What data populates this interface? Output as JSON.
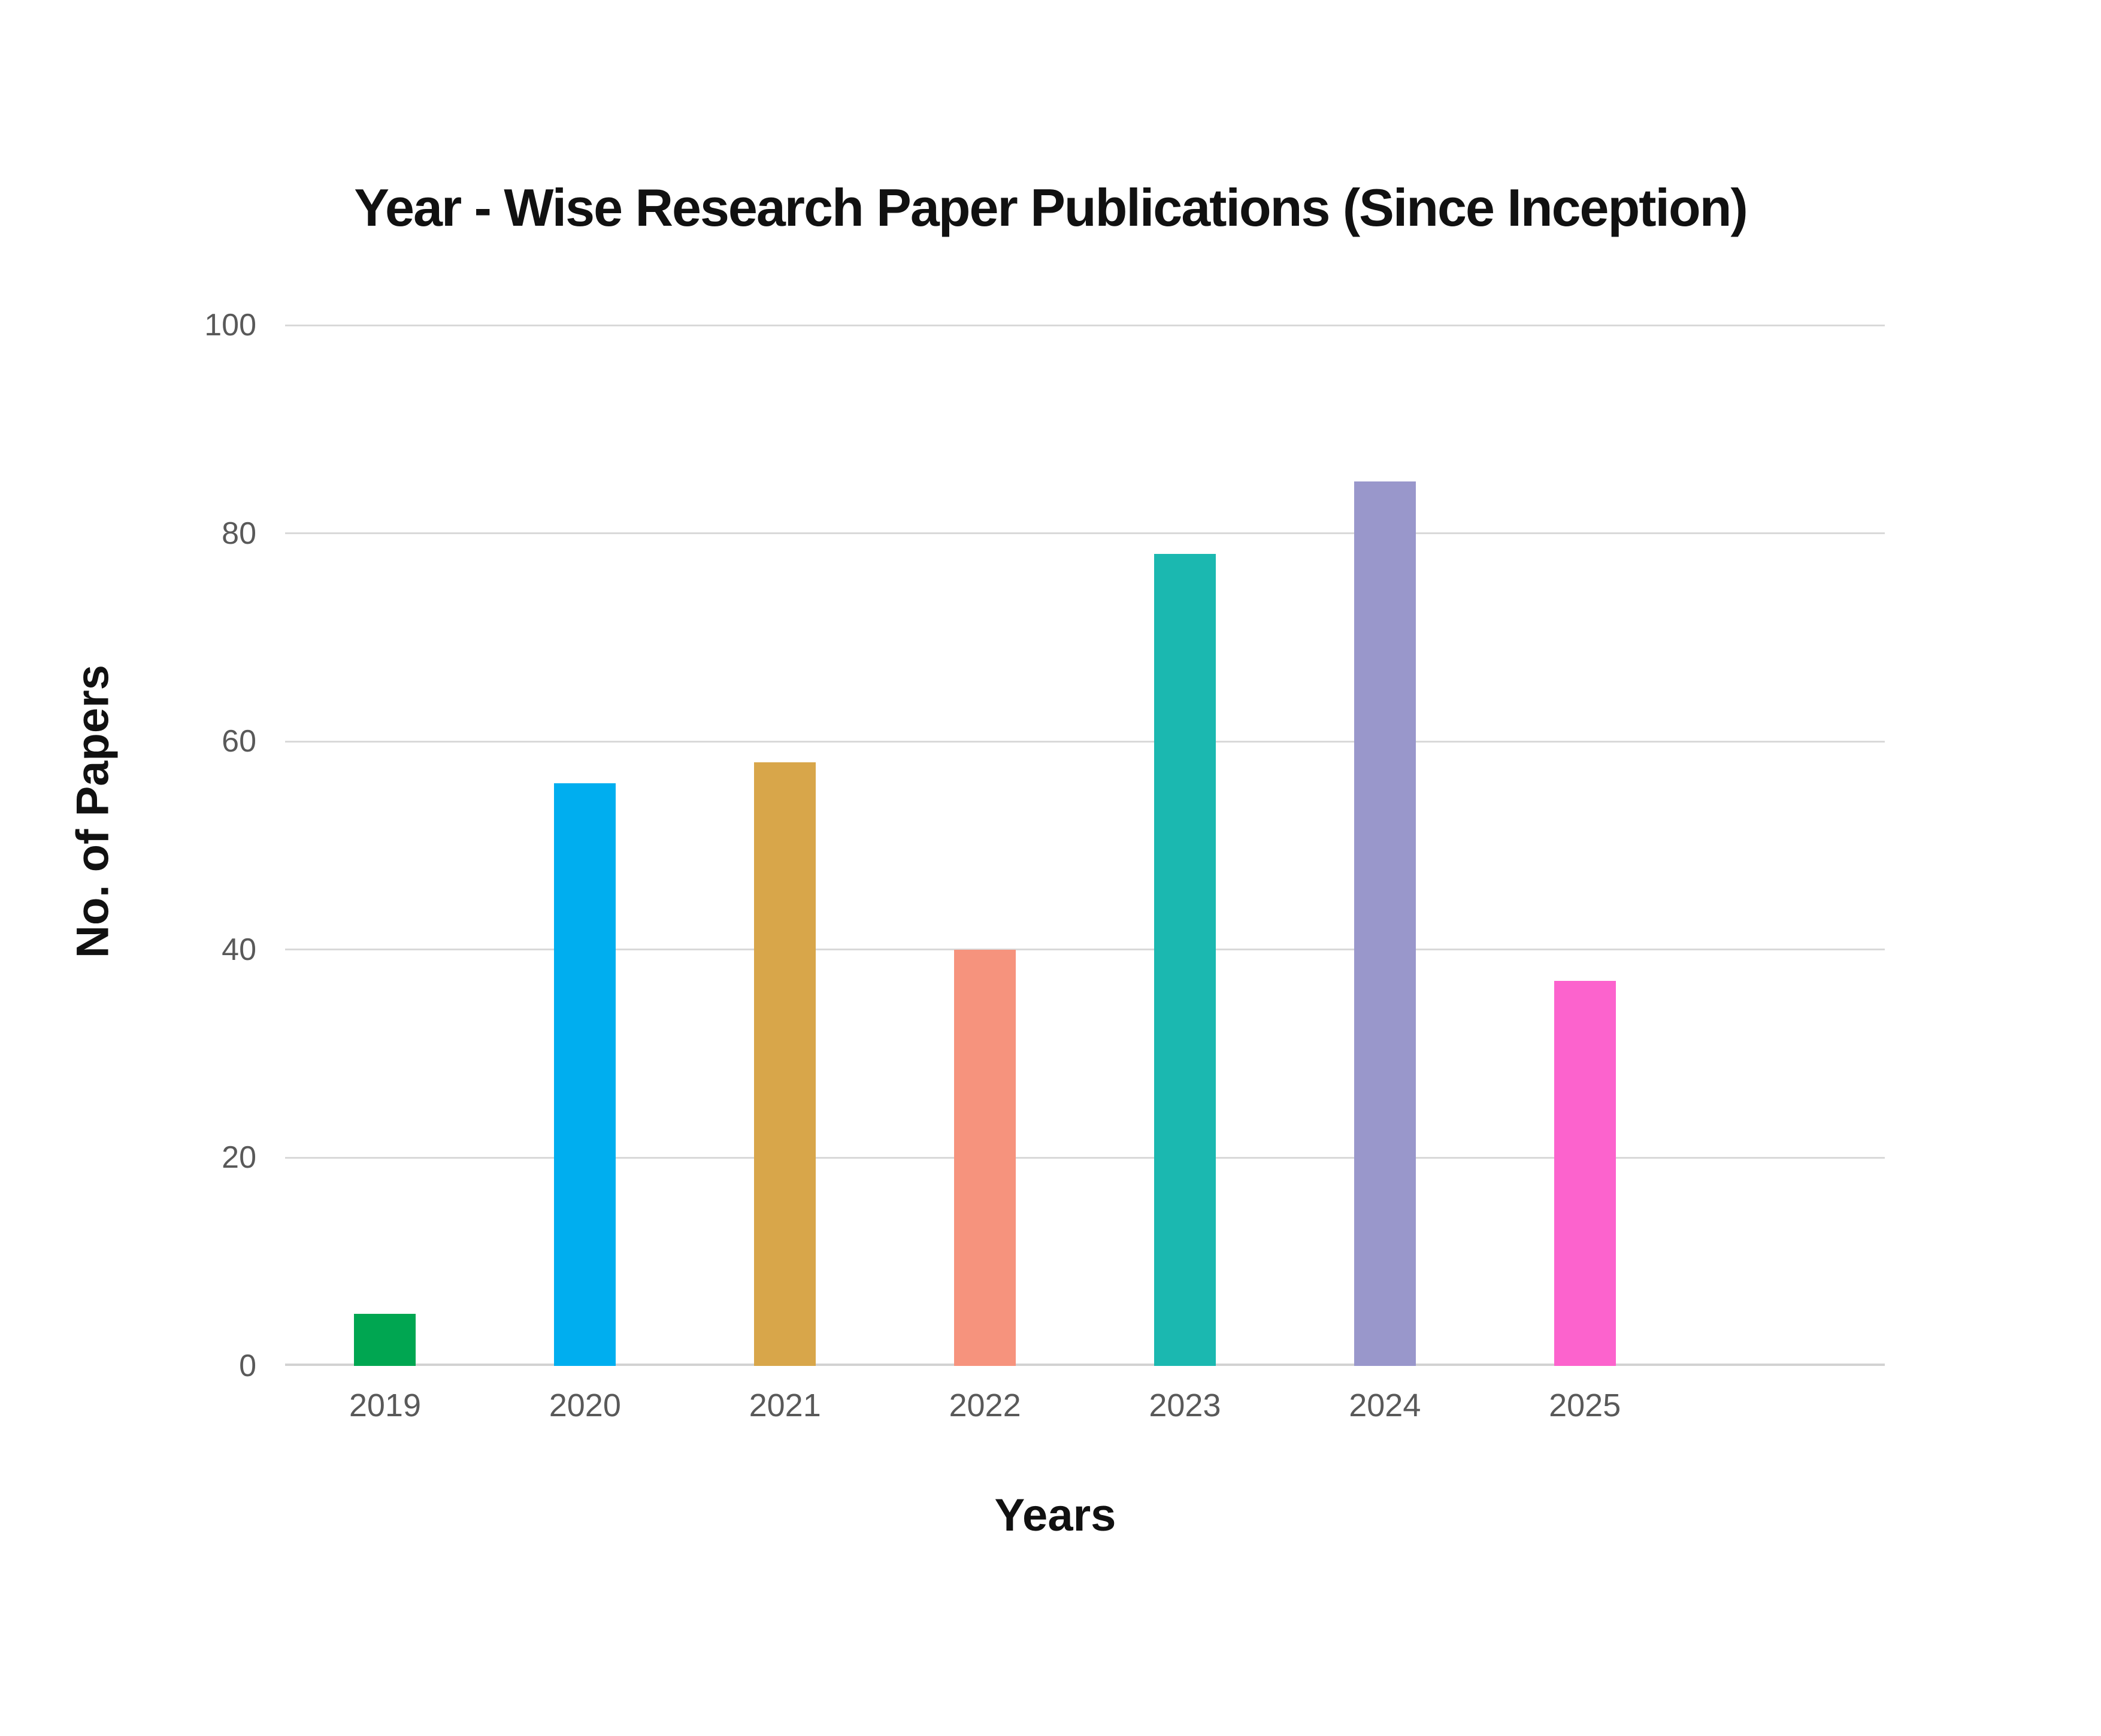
{
  "chart_data": {
    "type": "bar",
    "title": "Year - Wise Research Paper Publications (Since Inception)",
    "xlabel": "Years",
    "ylabel": "No. of Papers",
    "categories": [
      "2019",
      "2020",
      "2021",
      "2022",
      "2023",
      "2024",
      "2025"
    ],
    "values": [
      5,
      56,
      58,
      40,
      78,
      85,
      37
    ],
    "bar_colors": [
      "#00A651",
      "#00AEEF",
      "#D8A64A",
      "#F6937D",
      "#1BB8B0",
      "#9997CB",
      "#FC63CD"
    ],
    "ylim": [
      0,
      100
    ],
    "yticks": [
      0,
      20,
      40,
      60,
      80,
      100
    ],
    "grid": true,
    "legend_position": "none",
    "styles": {
      "title_color": "#111111",
      "axis_title_color": "#111111",
      "tick_label_color": "#595959",
      "gridline_color": "#D9D9D9",
      "background_color": "#FFFFFF"
    },
    "layout_hints": {
      "bands_in_plot": 8,
      "bars_occupy_first_n_bands": 7
    }
  }
}
